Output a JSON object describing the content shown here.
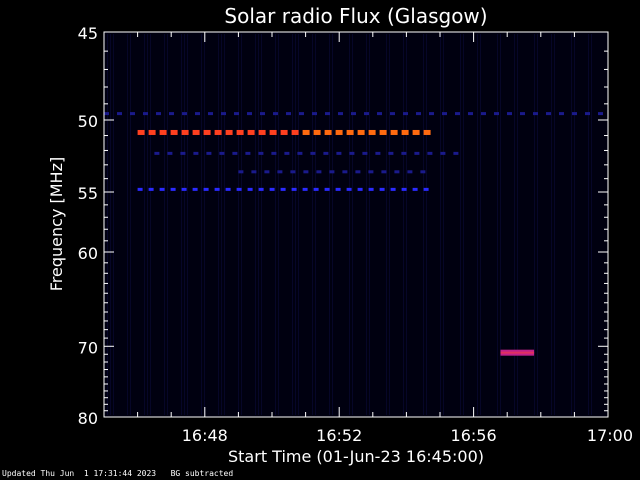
{
  "chart_data": {
    "type": "heatmap",
    "title": "Solar radio Flux (Glasgow)",
    "xlabel": "Start Time (01-Jun-23 16:45:00)",
    "ylabel": "Frequency [MHz]",
    "x_unit": "minutes after 16:00",
    "xlim": [
      45,
      60
    ],
    "ylim": [
      45,
      80
    ],
    "xticks": [
      {
        "value": 48,
        "label": "16:48"
      },
      {
        "value": 52,
        "label": "16:52"
      },
      {
        "value": 56,
        "label": "16:56"
      },
      {
        "value": 60,
        "label": "17:00"
      }
    ],
    "yticks": [
      {
        "value": 45,
        "label": "45"
      },
      {
        "value": 50,
        "label": "50"
      },
      {
        "value": 55,
        "label": "55"
      },
      {
        "value": 60,
        "label": "60"
      },
      {
        "value": 70,
        "label": "70"
      },
      {
        "value": 80,
        "label": "80"
      }
    ],
    "colors": {
      "background": "#000010",
      "weak": "#1a1a8c",
      "medium": "#2a2aff",
      "strong": "#ff4020",
      "flare": "#c0208a"
    },
    "emissions": [
      {
        "freq": 50.8,
        "t_start": 46.0,
        "t_end": 54.8,
        "intensity": "strong"
      },
      {
        "freq": 54.8,
        "t_start": 46.0,
        "t_end": 54.8,
        "intensity": "medium"
      },
      {
        "freq": 53.5,
        "t_start": 49.0,
        "t_end": 54.8,
        "intensity": "weak"
      },
      {
        "freq": 52.2,
        "t_start": 46.5,
        "t_end": 55.6,
        "intensity": "weak"
      },
      {
        "freq": 49.6,
        "t_start": 45.0,
        "t_end": 60.0,
        "intensity": "weak"
      },
      {
        "freq": 70.8,
        "t_start": 56.8,
        "t_end": 57.8,
        "intensity": "flare"
      }
    ]
  },
  "footer": {
    "updated": "Updated Thu Jun  1 17:31:44 2023",
    "note": "BG subtracted"
  }
}
